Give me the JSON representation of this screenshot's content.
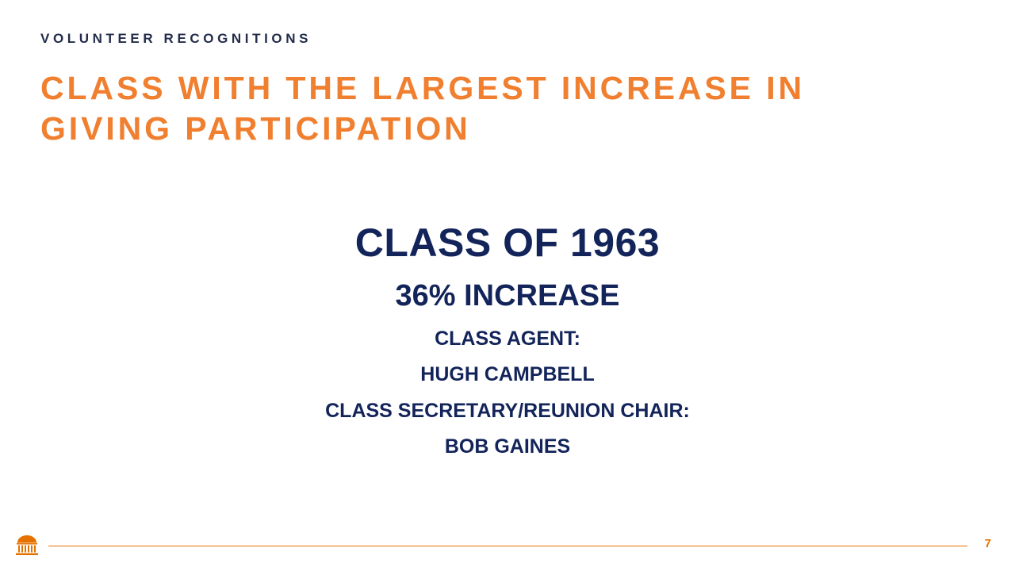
{
  "slide": {
    "section_label": "VOLUNTEER RECOGNITIONS",
    "title_line1": "CLASS WITH THE LARGEST INCREASE IN",
    "title_line2": "GIVING PARTICIPATION",
    "class_name": "CLASS OF 1963",
    "increase": "36% INCREASE",
    "agent_label": "CLASS AGENT:",
    "agent_name": "HUGH CAMPBELL",
    "secretary_label": "CLASS SECRETARY/REUNION CHAIR:",
    "secretary_name": "BOB GAINES"
  },
  "footer": {
    "logo_icon": "rotunda-icon",
    "page_number": "7"
  },
  "colors": {
    "orange": "#F07F2F",
    "navy": "#232D4B",
    "accent": "#E57200"
  }
}
